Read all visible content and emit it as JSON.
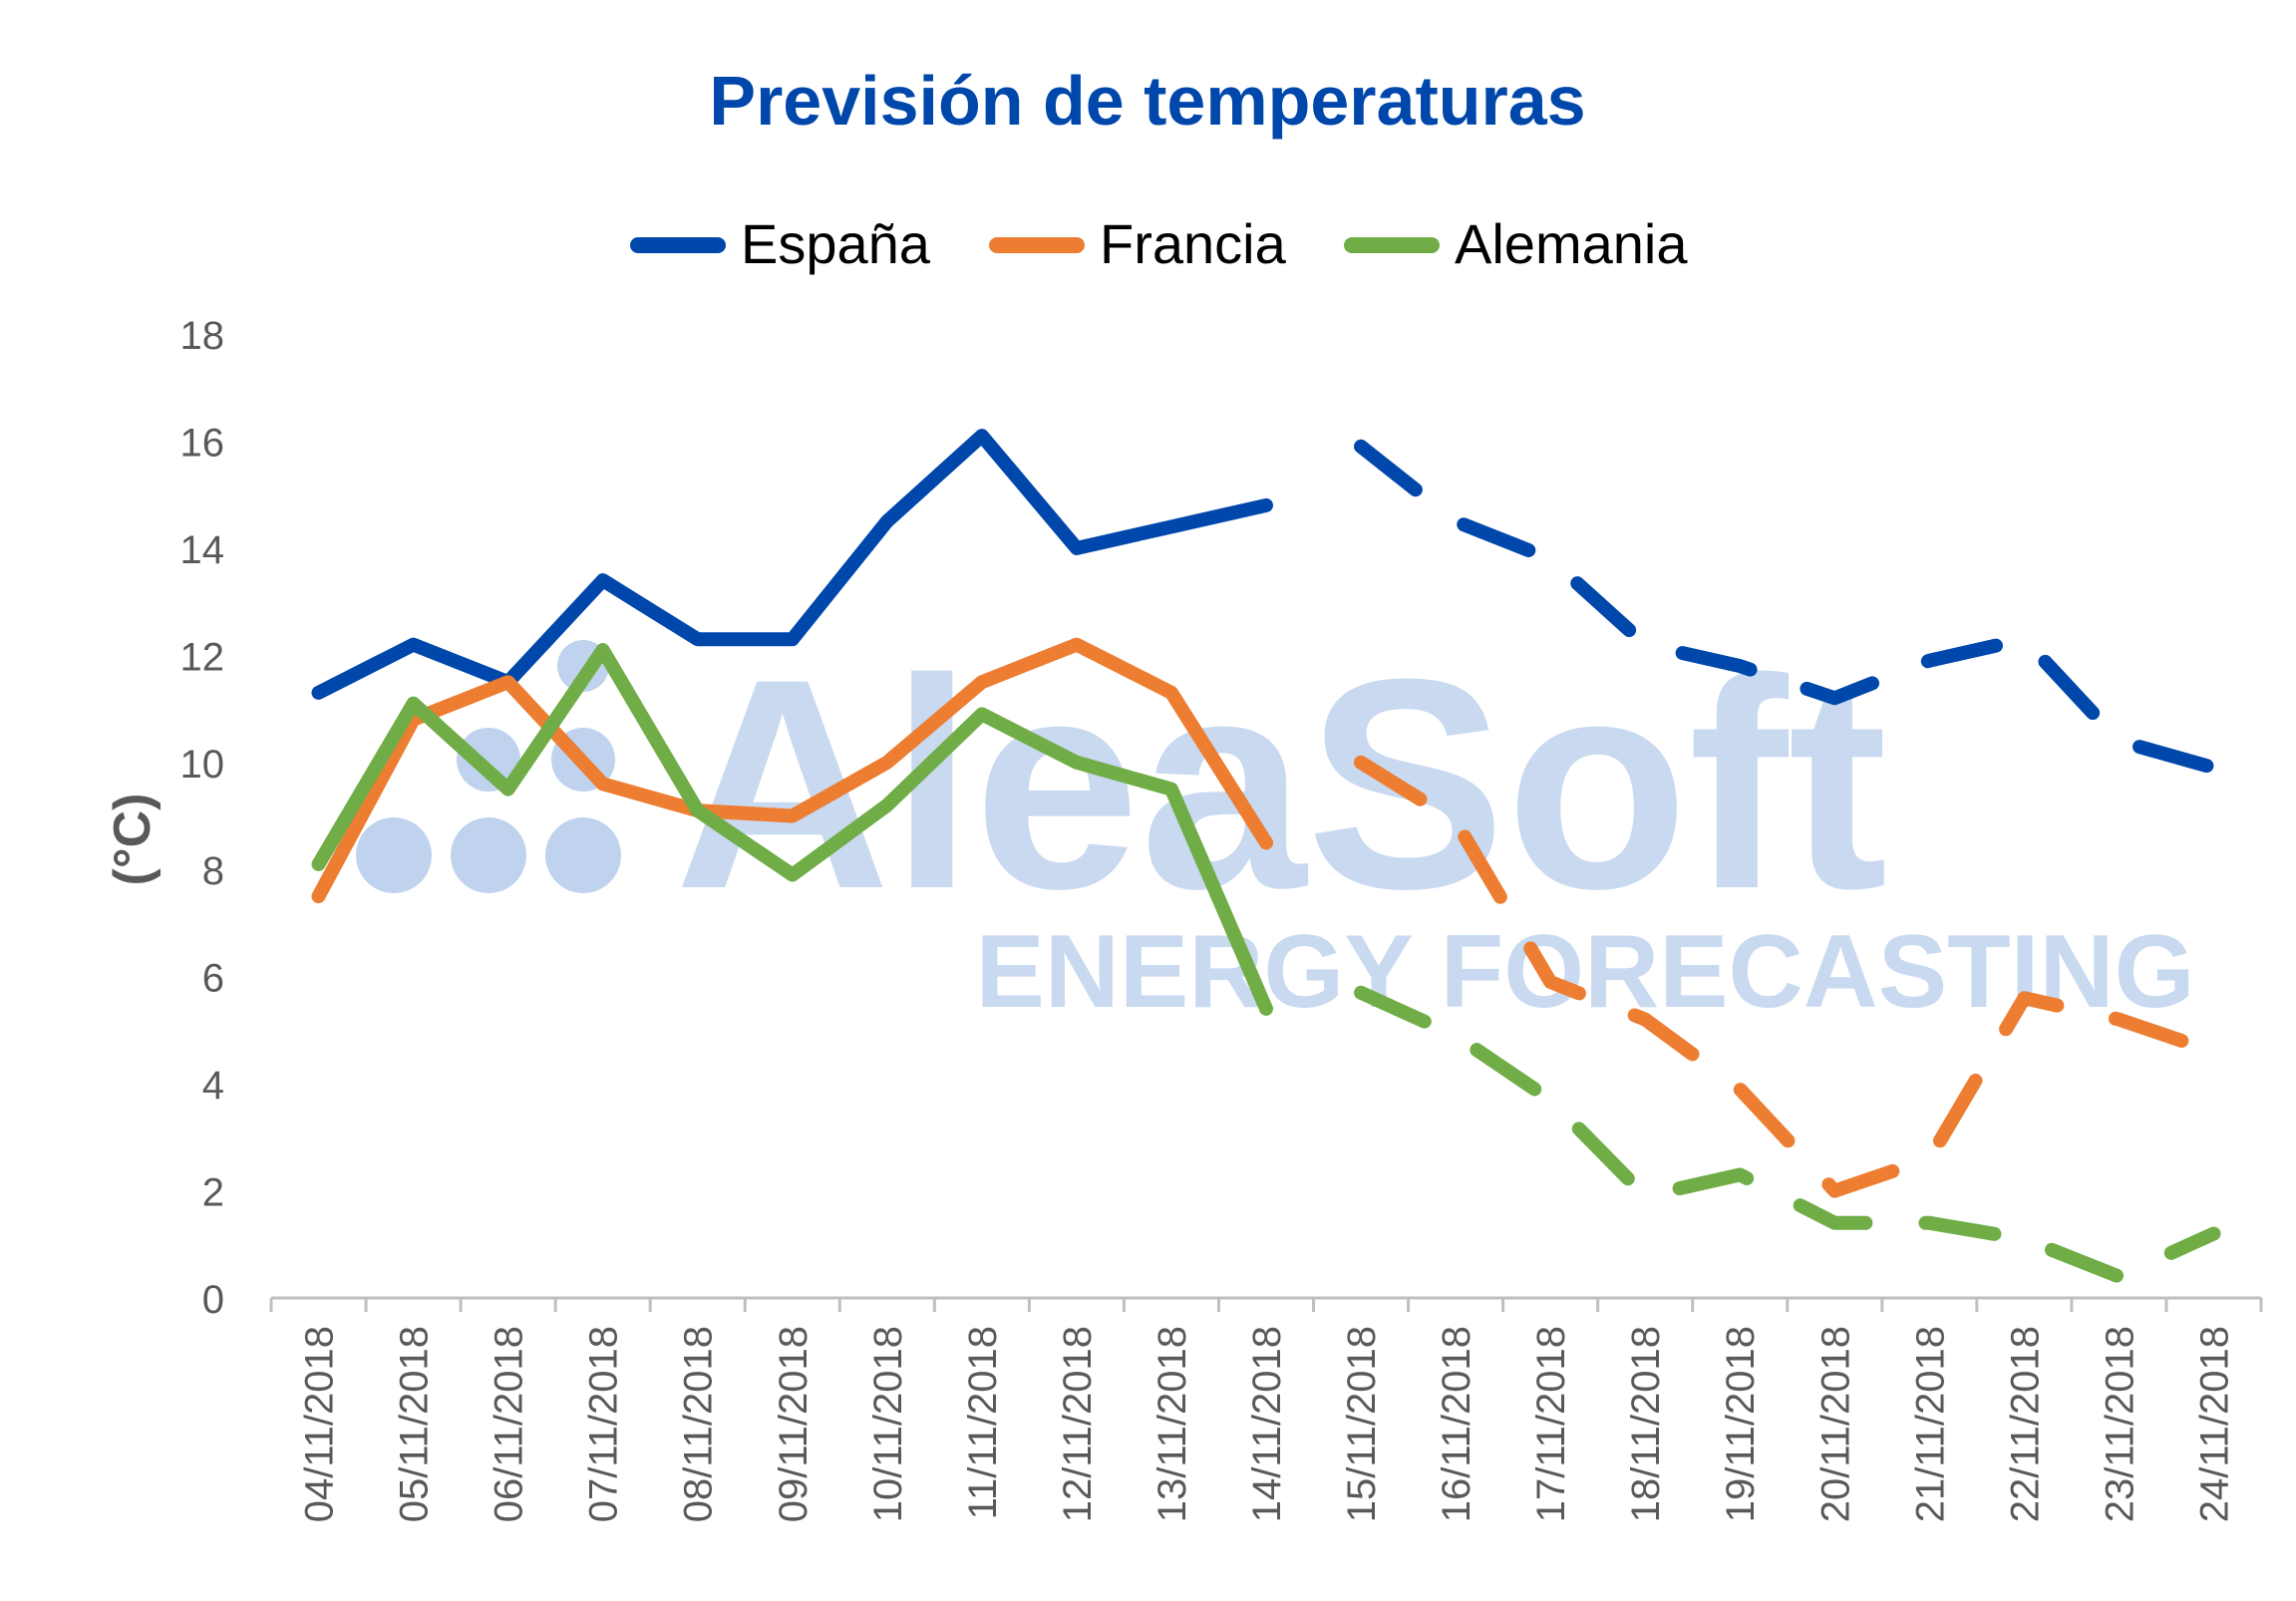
{
  "chart_data": {
    "type": "line",
    "title": "Previsión de temperaturas",
    "xlabel": "",
    "ylabel": "(°C)",
    "ylim": [
      0,
      18
    ],
    "yticks": [
      0,
      2,
      4,
      6,
      8,
      10,
      12,
      14,
      16,
      18
    ],
    "grid": false,
    "legend_position": "top-center",
    "forecast_start_index": 11,
    "categories": [
      "04/11/2018",
      "05/11/2018",
      "06/11/2018",
      "07/11/2018",
      "08/11/2018",
      "09/11/2018",
      "10/11/2018",
      "11/11/2018",
      "12/11/2018",
      "13/11/2018",
      "14/11/2018",
      "15/11/2018",
      "16/11/2018",
      "17/11/2018",
      "18/11/2018",
      "19/11/2018",
      "20/11/2018",
      "21/11/2018",
      "22/11/2018",
      "23/11/2018",
      "24/11/2018"
    ],
    "series": [
      {
        "name": "España",
        "color": "#0047AB",
        "values": [
          11.3,
          12.2,
          11.5,
          13.4,
          12.3,
          12.3,
          14.5,
          16.1,
          14.0,
          14.4,
          14.8,
          15.9,
          14.5,
          13.8,
          12.2,
          11.8,
          11.2,
          11.9,
          12.3,
          10.4,
          9.9
        ]
      },
      {
        "name": "Francia",
        "color": "#ED7D31",
        "values": [
          7.5,
          10.8,
          11.5,
          9.6,
          9.1,
          9.0,
          10.0,
          11.5,
          12.2,
          11.3,
          8.5,
          10.0,
          8.9,
          5.9,
          5.2,
          3.9,
          2.0,
          2.6,
          5.6,
          5.2,
          4.6
        ]
      },
      {
        "name": "Alemania",
        "color": "#70AD47",
        "values": [
          8.1,
          11.1,
          9.5,
          12.1,
          9.1,
          7.9,
          9.2,
          10.9,
          10.0,
          9.5,
          5.4,
          5.7,
          4.9,
          3.7,
          1.9,
          2.3,
          1.4,
          1.4,
          1.1,
          0.4,
          1.2
        ]
      }
    ]
  },
  "watermark": {
    "brand": "AleaSoft",
    "tagline": "ENERGY FORECASTING",
    "color": "#BFD3EE"
  },
  "colors": {
    "title": "#0047AB",
    "text": "#595959",
    "axis": "#BFBFBF"
  }
}
